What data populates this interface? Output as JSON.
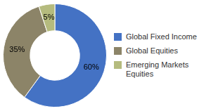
{
  "chart_data": {
    "type": "doughnut",
    "categories": [
      "Global Fixed Income",
      "Global Equities",
      "Emerging Markets\nEquities"
    ],
    "values": [
      60,
      35,
      5
    ],
    "value_labels": [
      "60%",
      "35%",
      "5%"
    ],
    "colors": [
      "#4472C4",
      "#8C8468",
      "#B5BB7E"
    ],
    "data_labels": true,
    "legend": "right"
  }
}
